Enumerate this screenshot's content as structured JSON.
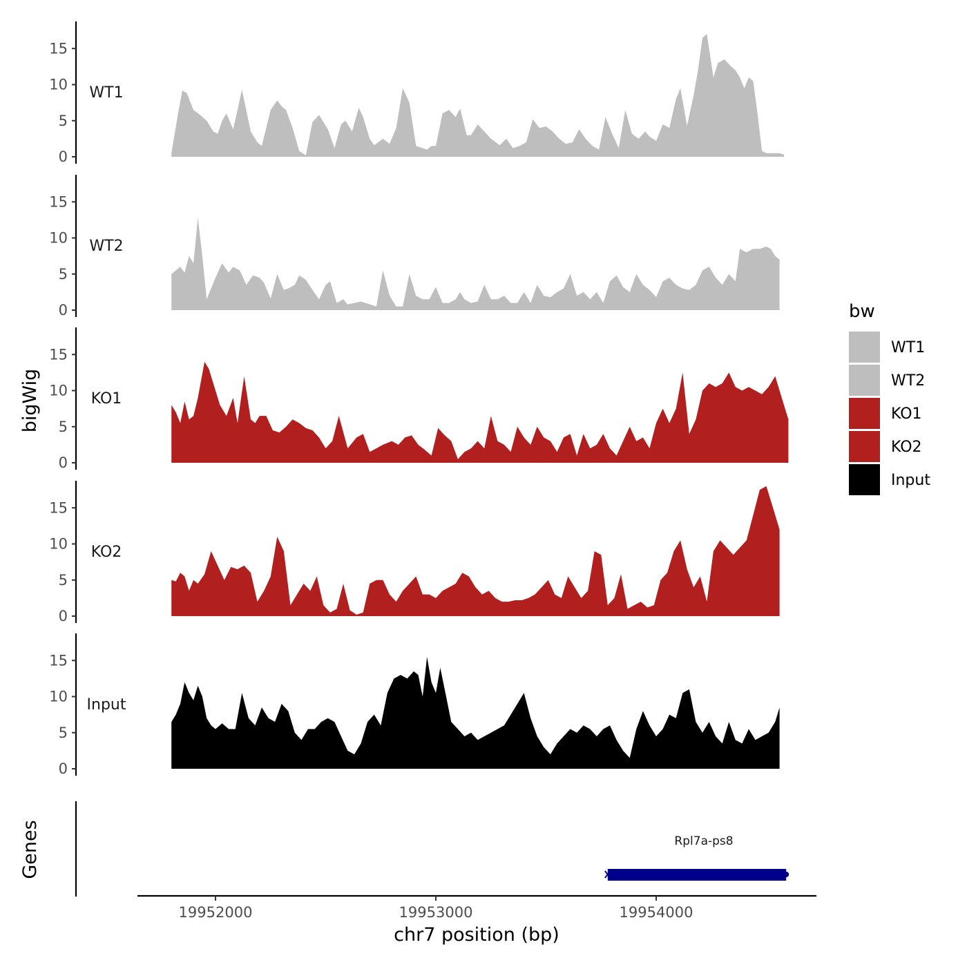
{
  "chart_data": {
    "type": "area",
    "title": "",
    "ylabel": "bigWig",
    "xlabel": "chr7 position (bp)",
    "xlim": [
      19951350,
      19954650
    ],
    "x_ticks": [
      19952000,
      19953000,
      19954000
    ],
    "x_tick_labels": [
      "19952000",
      "19953000",
      "19954000"
    ],
    "ylim": [
      0,
      18.5
    ],
    "y_ticks": [
      0,
      5,
      10,
      15
    ],
    "y_tick_labels": [
      "0",
      "5",
      "10",
      "15"
    ],
    "legend": {
      "title": "bw",
      "position": "right",
      "entries": [
        {
          "label": "WT1",
          "color": "#bebebe"
        },
        {
          "label": "WT2",
          "color": "#bebebe"
        },
        {
          "label": "KO1",
          "color": "#b21f1f"
        },
        {
          "label": "KO2",
          "color": "#b21f1f"
        },
        {
          "label": "Input",
          "color": "#000000"
        }
      ]
    },
    "series": [
      {
        "name": "WT1",
        "color": "#bebebe",
        "x": [
          19951800,
          19951830,
          19951850,
          19951870,
          19951900,
          19951930,
          19951960,
          19951990,
          19952010,
          19952030,
          19952050,
          19952080,
          19952100,
          19952120,
          19952160,
          19952190,
          19952210,
          19952250,
          19952280,
          19952300,
          19952320,
          19952350,
          19952380,
          19952410,
          19952440,
          19952470,
          19952510,
          19952540,
          19952570,
          19952590,
          19952620,
          19952650,
          19952670,
          19952700,
          19952720,
          19952760,
          19952790,
          19952820,
          19952850,
          19952880,
          19952910,
          19952940,
          19952960,
          19952980,
          19953000,
          19953030,
          19953060,
          19953090,
          19953110,
          19953140,
          19953160,
          19953190,
          19953220,
          19953250,
          19953290,
          19953320,
          19953350,
          19953380,
          19953410,
          19953440,
          19953470,
          19953500,
          19953530,
          19953560,
          19953590,
          19953620,
          19953650,
          19953680,
          19953710,
          19953740,
          19953770,
          19953800,
          19953830,
          19953860,
          19953890,
          19953920,
          19953950,
          19953970,
          19954000,
          19954030,
          19954060,
          19954090,
          19954110,
          19954140,
          19954170,
          19954190,
          19954210,
          19954230,
          19954260,
          19954280,
          19954310,
          19954340,
          19954360,
          19954380,
          19954400,
          19954420,
          19954440,
          19954460,
          19954480,
          19954500,
          19954520,
          19954540,
          19954560,
          19954580
        ],
        "y": [
          0.5,
          6.0,
          9.2,
          8.8,
          6.5,
          5.8,
          5.0,
          3.5,
          3.2,
          5.0,
          6.0,
          3.8,
          6.5,
          9.3,
          3.5,
          2.0,
          1.5,
          6.5,
          7.8,
          7.0,
          6.5,
          4.0,
          0.8,
          0.2,
          4.8,
          5.8,
          3.8,
          1.2,
          4.5,
          5.0,
          3.5,
          6.8,
          5.5,
          2.5,
          1.6,
          2.5,
          1.8,
          4.0,
          9.5,
          7.5,
          1.5,
          1.2,
          1.0,
          1.5,
          1.5,
          6.0,
          6.5,
          5.5,
          6.7,
          3.0,
          3.0,
          4.5,
          3.5,
          2.5,
          1.6,
          2.5,
          1.2,
          1.5,
          2.0,
          5.2,
          4.0,
          4.2,
          3.5,
          2.5,
          1.8,
          2.0,
          3.8,
          2.5,
          1.5,
          1.0,
          5.5,
          3.2,
          1.2,
          6.5,
          3.2,
          2.5,
          3.5,
          2.8,
          2.2,
          4.5,
          4.0,
          8.0,
          9.5,
          4.3,
          8.5,
          12.0,
          16.5,
          17.0,
          11.0,
          13.0,
          13.5,
          12.5,
          12.0,
          11.0,
          9.5,
          11.0,
          10.5,
          6.0,
          0.8,
          0.5,
          0.5,
          0.5,
          0.5,
          0.3
        ]
      },
      {
        "name": "WT2",
        "color": "#bebebe",
        "x": [
          19951800,
          19951820,
          19951840,
          19951860,
          19951880,
          19951900,
          19951920,
          19951940,
          19951960,
          19951980,
          19952000,
          19952030,
          19952060,
          19952080,
          19952110,
          19952140,
          19952170,
          19952200,
          19952220,
          19952250,
          19952280,
          19952310,
          19952330,
          19952360,
          19952380,
          19952410,
          19952440,
          19952470,
          19952500,
          19952520,
          19952550,
          19952580,
          19952600,
          19952630,
          19952660,
          19952700,
          19952730,
          19952760,
          19952790,
          19952820,
          19952850,
          19952880,
          19952910,
          19952940,
          19952970,
          19953000,
          19953030,
          19953060,
          19953090,
          19953110,
          19953130,
          19953160,
          19953190,
          19953220,
          19953250,
          19953280,
          19953310,
          19953340,
          19953370,
          19953400,
          19953430,
          19953460,
          19953490,
          19953520,
          19953550,
          19953580,
          19953610,
          19953640,
          19953670,
          19953700,
          19953730,
          19953760,
          19953790,
          19953820,
          19953850,
          19953880,
          19953910,
          19953940,
          19953970,
          19954000,
          19954030,
          19954060,
          19954090,
          19954120,
          19954150,
          19954180,
          19954210,
          19954240,
          19954270,
          19954300,
          19954330,
          19954360,
          19954380,
          19954410,
          19954440,
          19954470,
          19954500,
          19954520,
          19954540,
          19954560
        ],
        "y": [
          5.0,
          5.5,
          6.0,
          5.2,
          7.5,
          6.5,
          12.8,
          7.5,
          1.5,
          3.0,
          4.5,
          6.5,
          5.2,
          6.0,
          5.5,
          3.5,
          4.8,
          4.5,
          3.8,
          1.6,
          5.0,
          2.8,
          3.0,
          3.5,
          4.8,
          4.2,
          2.8,
          1.5,
          3.5,
          4.0,
          1.0,
          1.5,
          0.8,
          1.0,
          1.2,
          0.8,
          0.5,
          5.5,
          2.0,
          0.5,
          0.5,
          5.0,
          2.0,
          1.5,
          1.5,
          3.2,
          1.0,
          1.0,
          1.5,
          2.5,
          1.5,
          1.0,
          1.2,
          3.5,
          1.5,
          1.5,
          2.0,
          1.0,
          1.0,
          2.5,
          1.0,
          3.5,
          2.0,
          1.8,
          2.5,
          3.0,
          5.0,
          2.0,
          2.5,
          1.5,
          2.5,
          1.0,
          4.0,
          4.8,
          3.2,
          2.5,
          5.0,
          3.5,
          2.8,
          1.8,
          4.0,
          4.5,
          3.5,
          3.0,
          2.8,
          3.5,
          5.5,
          6.0,
          4.5,
          3.5,
          5.0,
          4.0,
          8.5,
          8.0,
          8.5,
          8.5,
          8.8,
          8.5,
          7.5,
          7.0
        ]
      },
      {
        "name": "KO1",
        "color": "#b21f1f",
        "x": [
          19951800,
          19951820,
          19951840,
          19951860,
          19951880,
          19951900,
          19951920,
          19951950,
          19951970,
          19951990,
          19952020,
          19952050,
          19952080,
          19952100,
          19952130,
          19952160,
          19952180,
          19952200,
          19952230,
          19952260,
          19952290,
          19952320,
          19952350,
          19952380,
          19952410,
          19952440,
          19952470,
          19952500,
          19952530,
          19952560,
          19952600,
          19952640,
          19952670,
          19952700,
          19952730,
          19952760,
          19952800,
          19952830,
          19952860,
          19952890,
          19952920,
          19952950,
          19952980,
          19953010,
          19953040,
          19953070,
          19953100,
          19953130,
          19953160,
          19953190,
          19953220,
          19953250,
          19953280,
          19953310,
          19953340,
          19953370,
          19953400,
          19953430,
          19953460,
          19953490,
          19953520,
          19953550,
          19953580,
          19953610,
          19953640,
          19953670,
          19953700,
          19953730,
          19953760,
          19953790,
          19953820,
          19953850,
          19953880,
          19953910,
          19953940,
          19953970,
          19954000,
          19954030,
          19954060,
          19954090,
          19954120,
          19954150,
          19954180,
          19954210,
          19954240,
          19954270,
          19954300,
          19954330,
          19954360,
          19954390,
          19954420,
          19954450,
          19954480,
          19954510,
          19954540,
          19954560,
          19954580,
          19954600
        ],
        "y": [
          8.0,
          7.0,
          5.5,
          8.5,
          6.0,
          6.5,
          9.0,
          14.0,
          13.0,
          11.0,
          8.0,
          6.5,
          9.0,
          5.5,
          12.0,
          6.0,
          5.5,
          6.5,
          6.5,
          4.5,
          4.2,
          5.0,
          6.0,
          5.5,
          4.8,
          4.5,
          3.5,
          2.0,
          3.0,
          6.5,
          2.0,
          3.5,
          4.0,
          1.5,
          2.0,
          2.5,
          3.0,
          2.5,
          3.5,
          3.8,
          2.5,
          1.8,
          1.0,
          4.8,
          3.8,
          3.0,
          0.5,
          1.5,
          2.0,
          3.0,
          2.0,
          6.5,
          3.0,
          2.5,
          1.5,
          5.0,
          3.5,
          2.5,
          5.0,
          3.5,
          3.0,
          1.5,
          3.5,
          4.0,
          1.0,
          4.0,
          2.0,
          2.5,
          4.0,
          2.0,
          1.0,
          3.0,
          5.0,
          3.0,
          3.5,
          2.0,
          5.5,
          7.5,
          5.5,
          7.5,
          12.5,
          4.0,
          6.0,
          10.0,
          11.0,
          10.5,
          11.0,
          12.5,
          10.5,
          10.0,
          10.5,
          10.0,
          9.5,
          10.5,
          12.0,
          10.0,
          8.0,
          6.0
        ]
      },
      {
        "name": "KO2",
        "color": "#b21f1f",
        "x": [
          19951800,
          19951820,
          19951840,
          19951860,
          19951880,
          19951900,
          19951920,
          19951950,
          19951980,
          19952010,
          19952040,
          19952070,
          19952100,
          19952130,
          19952160,
          19952190,
          19952220,
          19952250,
          19952280,
          19952310,
          19952340,
          19952370,
          19952400,
          19952430,
          19952460,
          19952490,
          19952520,
          19952550,
          19952580,
          19952610,
          19952640,
          19952670,
          19952700,
          19952730,
          19952760,
          19952790,
          19952820,
          19952850,
          19952880,
          19952910,
          19952940,
          19952970,
          19953000,
          19953030,
          19953060,
          19953090,
          19953120,
          19953150,
          19953180,
          19953210,
          19953240,
          19953270,
          19953300,
          19953330,
          19953360,
          19953390,
          19953420,
          19953450,
          19953480,
          19953510,
          19953540,
          19953570,
          19953600,
          19953630,
          19953660,
          19953690,
          19953720,
          19953750,
          19953780,
          19953810,
          19953840,
          19953870,
          19953900,
          19953930,
          19953960,
          19953990,
          19954020,
          19954050,
          19954080,
          19954110,
          19954140,
          19954170,
          19954200,
          19954230,
          19954260,
          19954290,
          19954320,
          19954350,
          19954380,
          19954410,
          19954440,
          19954470,
          19954500,
          19954520,
          19954540,
          19954560
        ],
        "y": [
          5.0,
          4.8,
          6.0,
          5.5,
          3.5,
          5.0,
          4.5,
          5.8,
          9.0,
          7.0,
          5.0,
          6.8,
          6.5,
          7.0,
          6.0,
          2.0,
          3.5,
          5.5,
          11.0,
          9.0,
          1.5,
          3.0,
          4.5,
          3.5,
          5.5,
          1.5,
          0.5,
          1.0,
          4.5,
          0.8,
          0.2,
          0.5,
          4.5,
          5.0,
          5.0,
          3.0,
          2.0,
          3.5,
          4.5,
          5.5,
          3.0,
          3.0,
          2.5,
          3.5,
          4.0,
          4.5,
          6.0,
          5.5,
          4.0,
          3.0,
          3.5,
          2.5,
          2.0,
          2.0,
          2.2,
          2.2,
          2.5,
          3.0,
          4.0,
          5.0,
          3.0,
          2.5,
          5.5,
          4.0,
          2.5,
          3.5,
          9.0,
          8.5,
          1.5,
          2.5,
          5.8,
          1.0,
          1.5,
          2.0,
          1.2,
          1.5,
          5.0,
          6.0,
          9.0,
          10.5,
          6.5,
          4.0,
          5.5,
          2.0,
          9.0,
          10.5,
          9.5,
          8.5,
          9.5,
          10.5,
          14.0,
          17.5,
          18.0,
          16.0,
          14.0,
          12.0
        ]
      },
      {
        "name": "Input",
        "color": "#000000",
        "x": [
          19951800,
          19951820,
          19951840,
          19951860,
          19951880,
          19951900,
          19951920,
          19951940,
          19951960,
          19951980,
          19952000,
          19952030,
          19952060,
          19952090,
          19952120,
          19952150,
          19952180,
          19952210,
          19952240,
          19952270,
          19952300,
          19952330,
          19952360,
          19952390,
          19952420,
          19952450,
          19952480,
          19952510,
          19952540,
          19952570,
          19952600,
          19952630,
          19952660,
          19952690,
          19952720,
          19952750,
          19952780,
          19952810,
          19952840,
          19952870,
          19952900,
          19952920,
          19952940,
          19952960,
          19952980,
          19953000,
          19953020,
          19953040,
          19953070,
          19953100,
          19953130,
          19953160,
          19953190,
          19953220,
          19953250,
          19953280,
          19953310,
          19953340,
          19953370,
          19953400,
          19953430,
          19953460,
          19953490,
          19953520,
          19953550,
          19953580,
          19953610,
          19953640,
          19953670,
          19953700,
          19953730,
          19953760,
          19953790,
          19953820,
          19953850,
          19953880,
          19953910,
          19953940,
          19953970,
          19954000,
          19954030,
          19954060,
          19954090,
          19954120,
          19954150,
          19954180,
          19954210,
          19954240,
          19954270,
          19954300,
          19954330,
          19954360,
          19954390,
          19954420,
          19954450,
          19954480,
          19954510,
          19954540,
          19954560
        ],
        "y": [
          6.5,
          7.5,
          9.0,
          12.0,
          10.5,
          9.5,
          11.5,
          10.0,
          7.0,
          6.0,
          5.5,
          6.3,
          5.5,
          5.5,
          10.5,
          7.0,
          6.0,
          8.5,
          7.0,
          6.5,
          9.0,
          8.0,
          5.0,
          4.0,
          5.5,
          5.5,
          6.5,
          7.0,
          6.5,
          4.5,
          2.5,
          2.0,
          3.5,
          6.5,
          7.5,
          6.0,
          10.5,
          12.5,
          13.0,
          12.5,
          13.5,
          13.0,
          10.0,
          15.5,
          12.0,
          10.5,
          14.0,
          11.0,
          6.5,
          5.5,
          4.5,
          5.0,
          4.0,
          4.5,
          5.0,
          5.5,
          6.0,
          7.5,
          9.0,
          10.5,
          7.0,
          4.5,
          3.0,
          2.0,
          3.5,
          4.5,
          5.5,
          5.0,
          6.0,
          5.5,
          4.5,
          5.5,
          6.0,
          4.0,
          2.5,
          1.5,
          5.5,
          8.0,
          6.0,
          4.5,
          5.5,
          7.5,
          7.0,
          10.5,
          11.0,
          6.5,
          5.0,
          6.5,
          4.5,
          3.5,
          6.5,
          4.0,
          3.5,
          5.5,
          4.0,
          4.5,
          5.0,
          6.5,
          8.5
        ]
      }
    ],
    "genes_track": {
      "ylabel": "Genes",
      "genes": [
        {
          "name": "Rpl7a-ps8",
          "start": 19953780,
          "end": 19954590,
          "strand": "-",
          "color": "#00008b"
        }
      ]
    }
  }
}
